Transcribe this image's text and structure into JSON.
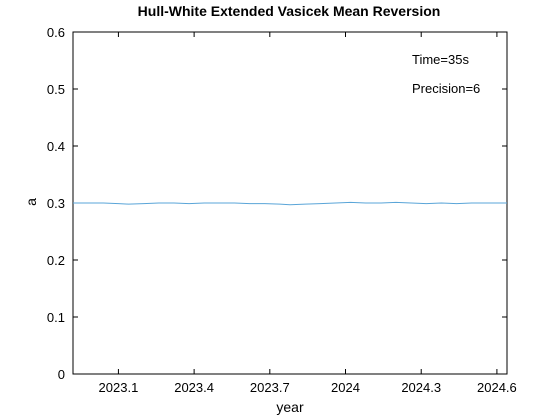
{
  "chart_data": {
    "type": "line",
    "title": "Hull-White Extended Vasicek Mean Reversion",
    "xlabel": "year",
    "ylabel": "a",
    "xlim": [
      2022.92,
      2024.64
    ],
    "ylim": [
      0,
      0.6
    ],
    "grid": false,
    "xticks": [
      2023.1,
      2023.4,
      2023.7,
      2024,
      2024.3,
      2024.6
    ],
    "xtick_labels": [
      "2023.1",
      "2023.4",
      "2023.7",
      "2024",
      "2024.3",
      "2024.6"
    ],
    "yticks": [
      0,
      0.1,
      0.2,
      0.3,
      0.4,
      0.5,
      0.6
    ],
    "ytick_labels": [
      "0",
      "0.1",
      "0.2",
      "0.3",
      "0.4",
      "0.5",
      "0.6"
    ],
    "annotations": [
      "Time=35s",
      "Precision=6"
    ],
    "series": [
      {
        "color": "#5aa5d8",
        "x": [
          2022.92,
          2022.98,
          2023.04,
          2023.1,
          2023.14,
          2023.2,
          2023.26,
          2023.32,
          2023.38,
          2023.44,
          2023.5,
          2023.56,
          2023.62,
          2023.68,
          2023.74,
          2023.78,
          2023.84,
          2023.9,
          2023.96,
          2024.02,
          2024.08,
          2024.14,
          2024.2,
          2024.26,
          2024.32,
          2024.38,
          2024.44,
          2024.5,
          2024.56,
          2024.64
        ],
        "y": [
          0.3,
          0.3,
          0.3,
          0.299,
          0.298,
          0.299,
          0.3,
          0.3,
          0.299,
          0.3,
          0.3,
          0.3,
          0.299,
          0.299,
          0.298,
          0.297,
          0.298,
          0.299,
          0.3,
          0.301,
          0.3,
          0.3,
          0.301,
          0.3,
          0.299,
          0.3,
          0.299,
          0.3,
          0.3,
          0.3
        ]
      }
    ]
  }
}
